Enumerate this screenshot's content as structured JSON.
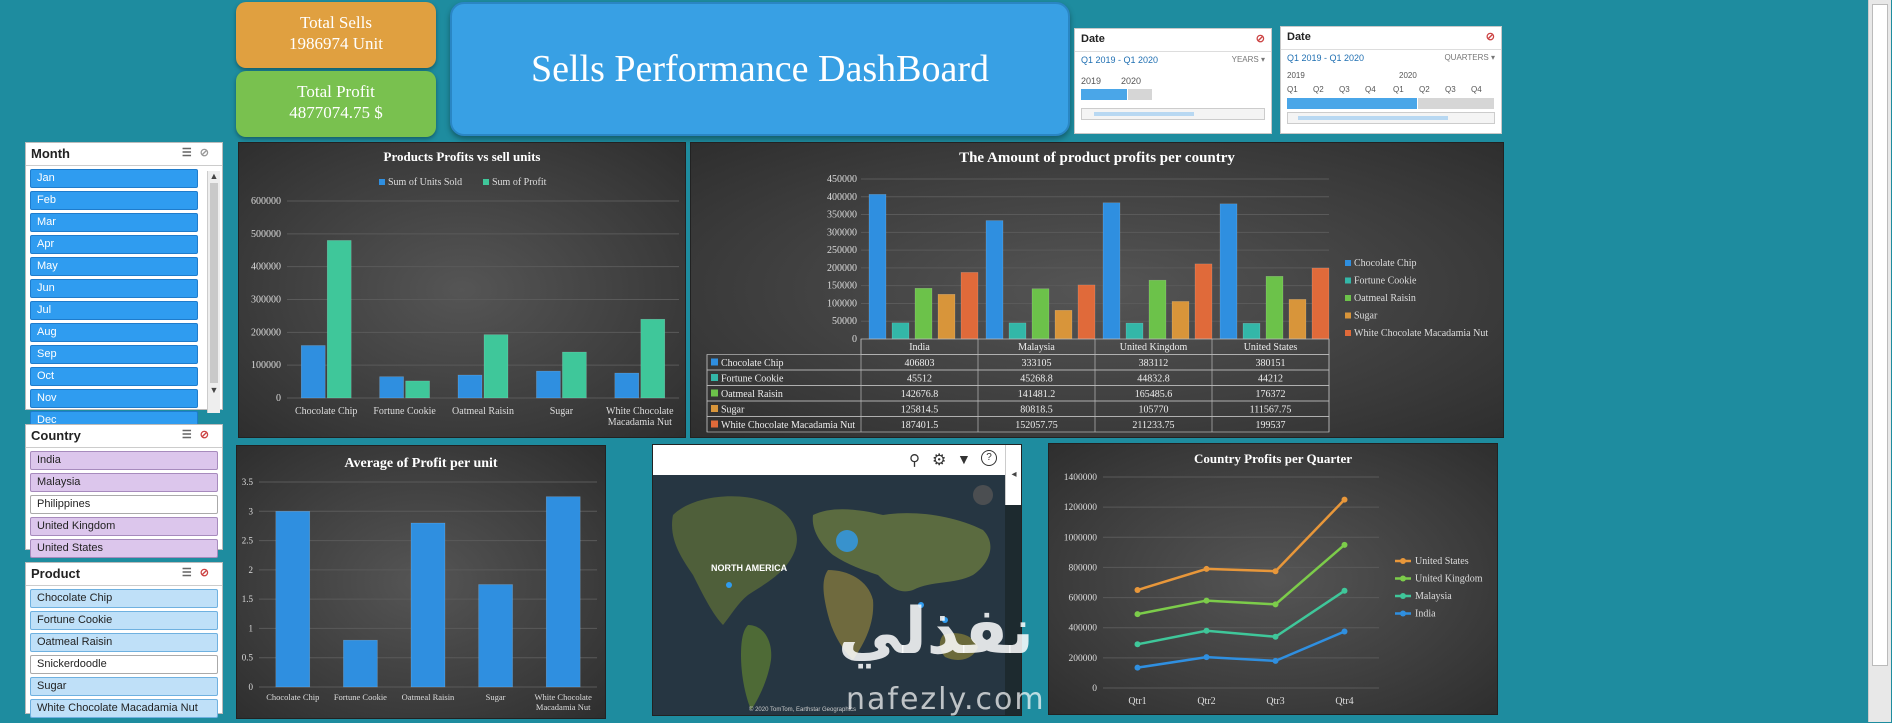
{
  "kpis": {
    "total_sells": {
      "label": "Total Sells",
      "value": "1986974 Unit",
      "color": "#e0a040"
    },
    "total_profit": {
      "label": "Total Profit",
      "value": "4877074.75 $",
      "color": "#79c14f"
    }
  },
  "dashboard_title": "Sells Performance DashBoard",
  "timelines": [
    {
      "header": "Date",
      "range": "Q1 2019 - Q1 2020",
      "level": "YEARS",
      "periods": [
        "2019",
        "2020"
      ]
    },
    {
      "header": "Date",
      "range": "Q1 2019 - Q1 2020",
      "level": "QUARTERS",
      "years": [
        "2019",
        "2020"
      ],
      "periods": [
        "Q1",
        "Q2",
        "Q3",
        "Q4",
        "Q1",
        "Q2",
        "Q3",
        "Q4"
      ]
    }
  ],
  "slicers": {
    "month": {
      "title": "Month",
      "items": [
        "Jan",
        "Feb",
        "Mar",
        "Apr",
        "May",
        "Jun",
        "Jul",
        "Aug",
        "Sep",
        "Oct",
        "Nov",
        "Dec"
      ]
    },
    "country": {
      "title": "Country",
      "items": [
        {
          "label": "India",
          "selected": true
        },
        {
          "label": "Malaysia",
          "selected": true
        },
        {
          "label": "Philippines",
          "selected": false
        },
        {
          "label": "United Kingdom",
          "selected": true
        },
        {
          "label": "United States",
          "selected": true
        }
      ]
    },
    "product": {
      "title": "Product",
      "items": [
        {
          "label": "Chocolate Chip",
          "selected": true
        },
        {
          "label": "Fortune Cookie",
          "selected": true
        },
        {
          "label": "Oatmeal Raisin",
          "selected": true
        },
        {
          "label": "Snickerdoodle",
          "selected": false
        },
        {
          "label": "Sugar",
          "selected": true
        },
        {
          "label": "White Chocolate Macadamia Nut",
          "selected": true
        }
      ]
    }
  },
  "map": {
    "label": "NORTH AMERICA",
    "credit": "© 2020 TomTom, Earthstar Geographics"
  },
  "watermark": {
    "arabic": "نفذلي",
    "latin": "nafezly.com"
  },
  "chart_data": [
    {
      "type": "bar",
      "title": "Products Profits vs sell units",
      "categories": [
        "Chocolate Chip",
        "Fortune Cookie",
        "Oatmeal Raisin",
        "Sugar",
        "White Chocolate Macadamia Nut"
      ],
      "series": [
        {
          "name": "Sum of Units Sold",
          "values": [
            160000,
            65000,
            70000,
            82000,
            76000
          ],
          "color": "#2f8fe0"
        },
        {
          "name": "Sum of Profit",
          "values": [
            480000,
            52000,
            193000,
            140000,
            240000
          ],
          "color": "#3fc79a"
        }
      ],
      "ylim": [
        0,
        600000
      ],
      "yticks": [
        "0",
        "100000",
        "200000",
        "300000",
        "400000",
        "500000",
        "600000"
      ],
      "legend": "top"
    },
    {
      "type": "bar",
      "title": "The Amount of product profits per country",
      "categories": [
        "India",
        "Malaysia",
        "United Kingdom",
        "United States"
      ],
      "series": [
        {
          "name": "Chocolate Chip",
          "values": [
            406803,
            333105,
            383112,
            380151
          ],
          "display": [
            "406803",
            "333105",
            "383112",
            "380151"
          ],
          "color": "#2f8fe0"
        },
        {
          "name": "Fortune Cookie",
          "values": [
            45512,
            45268.8,
            44832.8,
            44212
          ],
          "display": [
            "45512",
            "45268.8",
            "44832.8",
            "44212"
          ],
          "color": "#33b7a8"
        },
        {
          "name": "Oatmeal Raisin",
          "values": [
            142676.8,
            141481.2,
            165485.6,
            176372
          ],
          "display": [
            "142676.8",
            "141481.2",
            "165485.6",
            "176372"
          ],
          "color": "#6cc24a"
        },
        {
          "name": "Sugar",
          "values": [
            125814.5,
            80818.5,
            105770,
            111567.75
          ],
          "display": [
            "125814.5",
            "80818.5",
            "105770",
            "111567.75"
          ],
          "color": "#d8953a"
        },
        {
          "name": "White Chocolate Macadamia Nut",
          "values": [
            187401.5,
            152057.75,
            211233.75,
            199537
          ],
          "display": [
            "187401.5",
            "152057.75",
            "211233.75",
            "199537"
          ],
          "color": "#e06a3a"
        }
      ],
      "ylim": [
        0,
        450000
      ],
      "yticks": [
        "0",
        "50000",
        "100000",
        "150000",
        "200000",
        "250000",
        "300000",
        "350000",
        "400000",
        "450000"
      ],
      "legend": "right"
    },
    {
      "type": "bar",
      "title": "Average of Profit per unit",
      "categories": [
        "Chocolate Chip",
        "Fortune Cookie",
        "Oatmeal Raisin",
        "Sugar",
        "White Chocolate Macadamia Nut"
      ],
      "series": [
        {
          "values": [
            3.0,
            0.8,
            2.8,
            1.75,
            3.25
          ],
          "color": "#2f8fe0"
        }
      ],
      "ylim": [
        0,
        3.5
      ],
      "yticks": [
        "0",
        "0.5",
        "1",
        "1.5",
        "2",
        "2.5",
        "3",
        "3.5"
      ]
    },
    {
      "type": "line",
      "title": "Country Profits per Quarter",
      "categories": [
        "Qtr1",
        "Qtr2",
        "Qtr3",
        "Qtr4"
      ],
      "series": [
        {
          "name": "United States",
          "values": [
            650000,
            790000,
            775000,
            1250000
          ],
          "color": "#e8973a"
        },
        {
          "name": "United Kingdom",
          "values": [
            490000,
            580000,
            555000,
            950000
          ],
          "color": "#7ccc4a"
        },
        {
          "name": "Malaysia",
          "values": [
            290000,
            380000,
            340000,
            645000
          ],
          "color": "#3fc79a"
        },
        {
          "name": "India",
          "values": [
            135000,
            205000,
            180000,
            375000
          ],
          "color": "#2f8fe0"
        }
      ],
      "ylim": [
        0,
        1400000
      ],
      "yticks": [
        "0",
        "200000",
        "400000",
        "600000",
        "800000",
        "1000000",
        "1200000",
        "1400000"
      ],
      "legend": "right"
    }
  ]
}
